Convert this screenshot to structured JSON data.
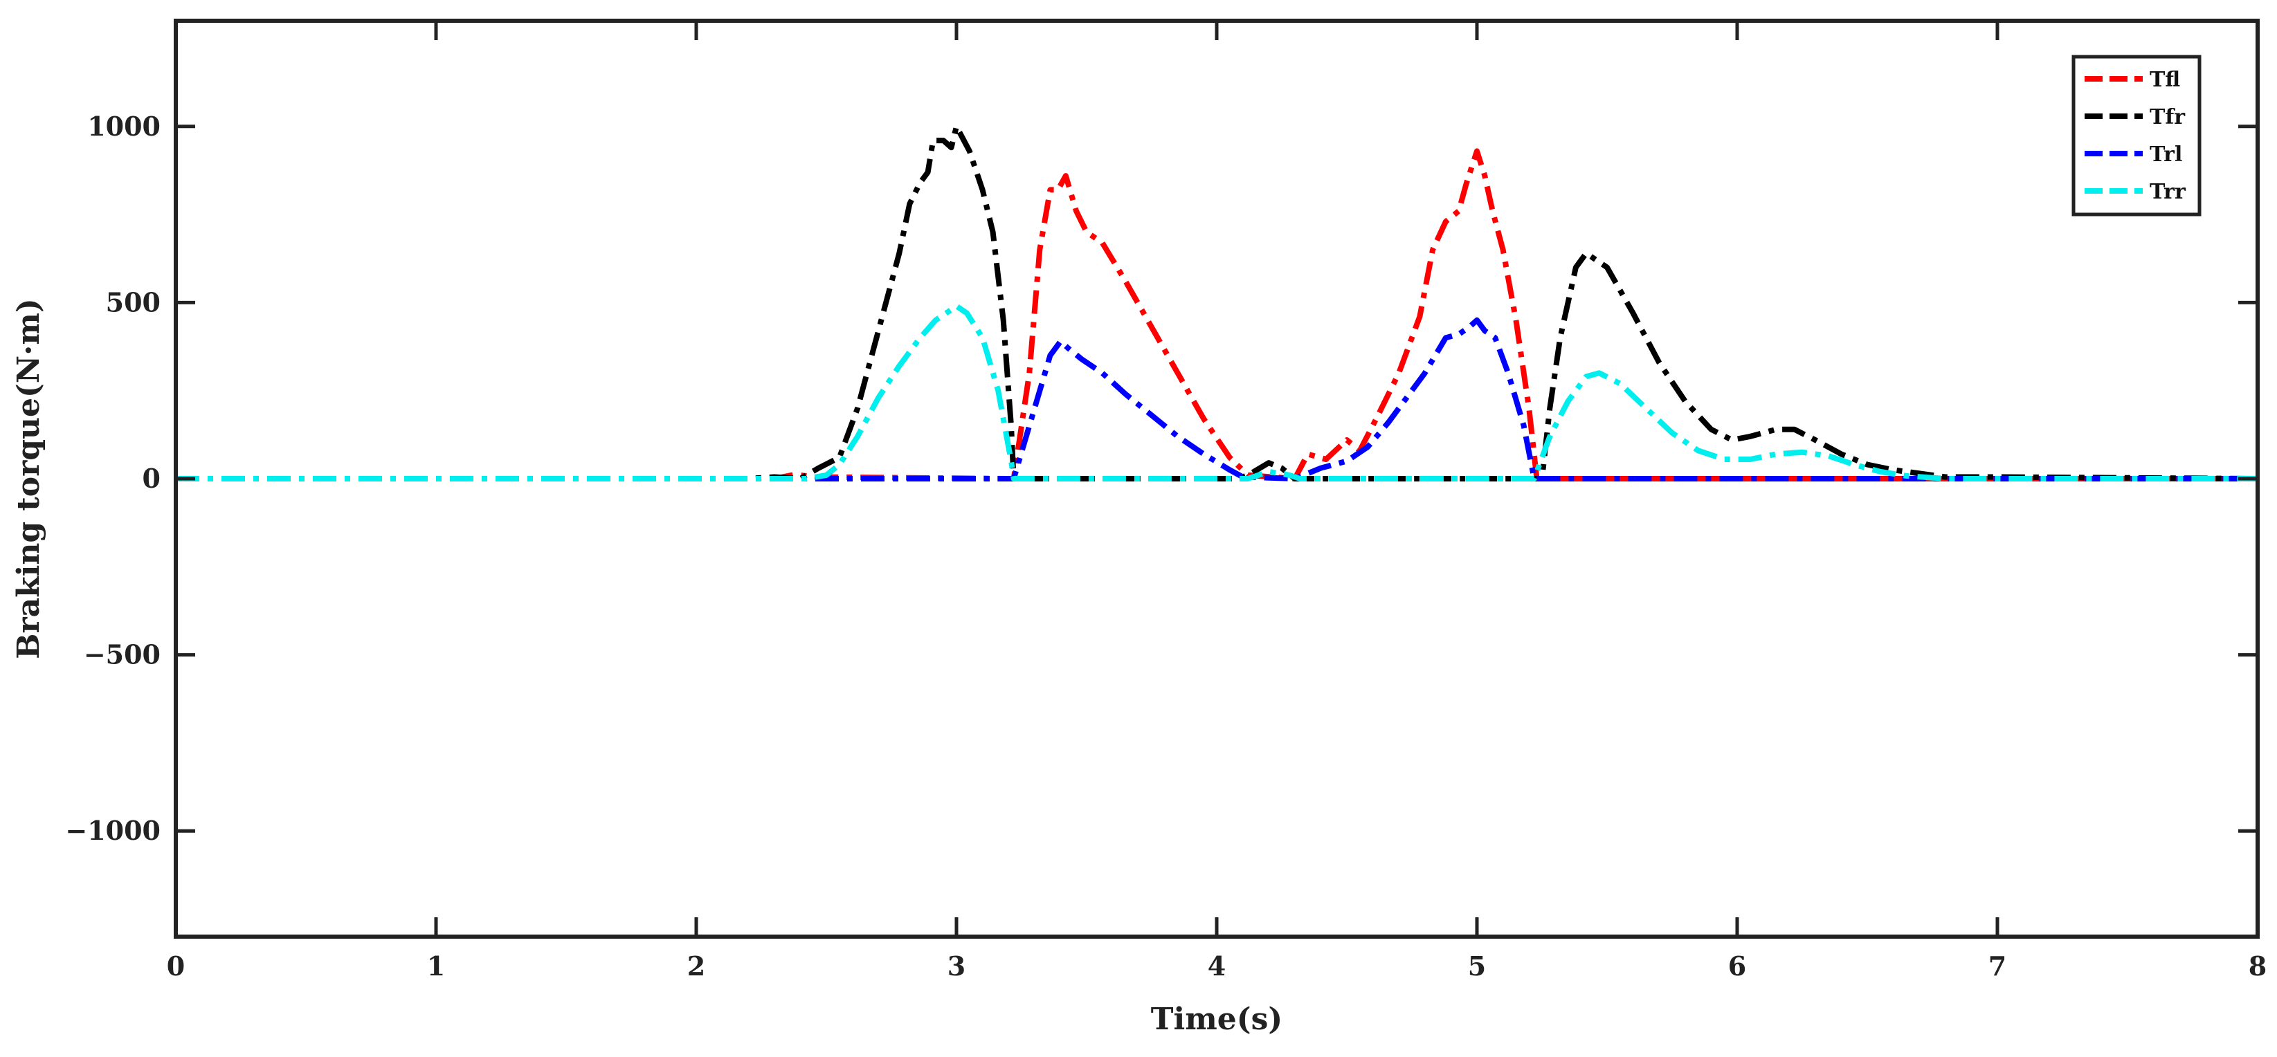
{
  "chart_data": {
    "type": "line",
    "title": "",
    "xlabel": "Time(s)",
    "ylabel": "Braking torque(N·m)",
    "xlim": [
      0,
      8
    ],
    "ylim": [
      -1300,
      1300
    ],
    "xticks": [
      0,
      1,
      2,
      3,
      4,
      5,
      6,
      7,
      8
    ],
    "yticks": [
      -1000,
      -500,
      0,
      500,
      1000
    ],
    "ytick_labels": [
      "−1000",
      "−500",
      "0",
      "500",
      "1000"
    ],
    "grid": false,
    "legend_position": "top-right",
    "series": [
      {
        "name": "Tfl",
        "color": "#ff0000",
        "points": [
          [
            0,
            0
          ],
          [
            2.3,
            0
          ],
          [
            2.38,
            12
          ],
          [
            2.45,
            5
          ],
          [
            3.2,
            0
          ],
          [
            3.22,
            0
          ],
          [
            3.28,
            300
          ],
          [
            3.32,
            650
          ],
          [
            3.36,
            820
          ],
          [
            3.39,
            820
          ],
          [
            3.42,
            860
          ],
          [
            3.46,
            760
          ],
          [
            3.5,
            700
          ],
          [
            3.56,
            670
          ],
          [
            3.65,
            560
          ],
          [
            3.75,
            430
          ],
          [
            3.85,
            300
          ],
          [
            3.95,
            170
          ],
          [
            4.05,
            60
          ],
          [
            4.12,
            10
          ],
          [
            4.3,
            0
          ],
          [
            4.35,
            70
          ],
          [
            4.42,
            55
          ],
          [
            4.5,
            110
          ],
          [
            4.55,
            80
          ],
          [
            4.62,
            180
          ],
          [
            4.7,
            300
          ],
          [
            4.78,
            460
          ],
          [
            4.83,
            650
          ],
          [
            4.88,
            730
          ],
          [
            4.93,
            760
          ],
          [
            4.96,
            840
          ],
          [
            5.0,
            930
          ],
          [
            5.03,
            860
          ],
          [
            5.06,
            760
          ],
          [
            5.1,
            650
          ],
          [
            5.15,
            450
          ],
          [
            5.2,
            200
          ],
          [
            5.23,
            0
          ],
          [
            8,
            0
          ]
        ]
      },
      {
        "name": "Tfr",
        "color": "#000000",
        "points": [
          [
            0,
            0
          ],
          [
            2.2,
            0
          ],
          [
            2.3,
            5
          ],
          [
            2.4,
            0
          ],
          [
            2.47,
            30
          ],
          [
            2.55,
            60
          ],
          [
            2.62,
            200
          ],
          [
            2.7,
            420
          ],
          [
            2.78,
            640
          ],
          [
            2.82,
            780
          ],
          [
            2.86,
            840
          ],
          [
            2.89,
            870
          ],
          [
            2.91,
            960
          ],
          [
            2.95,
            960
          ],
          [
            2.98,
            940
          ],
          [
            3.0,
            1000
          ],
          [
            3.05,
            930
          ],
          [
            3.1,
            820
          ],
          [
            3.14,
            700
          ],
          [
            3.18,
            450
          ],
          [
            3.21,
            150
          ],
          [
            3.22,
            0
          ],
          [
            4.08,
            0
          ],
          [
            4.12,
            10
          ],
          [
            4.2,
            45
          ],
          [
            4.25,
            30
          ],
          [
            4.3,
            0
          ],
          [
            5.25,
            0
          ],
          [
            5.28,
            200
          ],
          [
            5.32,
            400
          ],
          [
            5.38,
            600
          ],
          [
            5.42,
            640
          ],
          [
            5.46,
            620
          ],
          [
            5.5,
            600
          ],
          [
            5.6,
            470
          ],
          [
            5.7,
            330
          ],
          [
            5.8,
            220
          ],
          [
            5.9,
            140
          ],
          [
            5.98,
            110
          ],
          [
            6.05,
            120
          ],
          [
            6.15,
            140
          ],
          [
            6.22,
            140
          ],
          [
            6.3,
            110
          ],
          [
            6.4,
            70
          ],
          [
            6.5,
            40
          ],
          [
            6.6,
            25
          ],
          [
            6.7,
            15
          ],
          [
            6.8,
            5
          ],
          [
            7.0,
            5
          ],
          [
            8,
            0
          ]
        ]
      },
      {
        "name": "Trl",
        "color": "#0000ff",
        "points": [
          [
            0,
            0
          ],
          [
            3.22,
            0
          ],
          [
            3.3,
            200
          ],
          [
            3.36,
            350
          ],
          [
            3.4,
            390
          ],
          [
            3.43,
            370
          ],
          [
            3.48,
            340
          ],
          [
            3.56,
            300
          ],
          [
            3.65,
            240
          ],
          [
            3.75,
            180
          ],
          [
            3.85,
            120
          ],
          [
            3.95,
            70
          ],
          [
            4.05,
            25
          ],
          [
            4.1,
            5
          ],
          [
            4.3,
            0
          ],
          [
            4.4,
            30
          ],
          [
            4.5,
            50
          ],
          [
            4.58,
            90
          ],
          [
            4.66,
            160
          ],
          [
            4.74,
            240
          ],
          [
            4.8,
            300
          ],
          [
            4.84,
            350
          ],
          [
            4.88,
            400
          ],
          [
            4.93,
            410
          ],
          [
            4.97,
            430
          ],
          [
            5.0,
            450
          ],
          [
            5.03,
            420
          ],
          [
            5.07,
            400
          ],
          [
            5.12,
            300
          ],
          [
            5.18,
            150
          ],
          [
            5.22,
            0
          ],
          [
            8,
            0
          ]
        ]
      },
      {
        "name": "Trr",
        "color": "#00eeee",
        "points": [
          [
            0,
            0
          ],
          [
            2.42,
            0
          ],
          [
            2.5,
            10
          ],
          [
            2.55,
            40
          ],
          [
            2.62,
            120
          ],
          [
            2.7,
            230
          ],
          [
            2.78,
            320
          ],
          [
            2.86,
            400
          ],
          [
            2.92,
            450
          ],
          [
            2.96,
            470
          ],
          [
            3.0,
            490
          ],
          [
            3.04,
            470
          ],
          [
            3.1,
            400
          ],
          [
            3.16,
            250
          ],
          [
            3.21,
            50
          ],
          [
            3.22,
            0
          ],
          [
            4.12,
            0
          ],
          [
            4.2,
            20
          ],
          [
            4.28,
            10
          ],
          [
            4.32,
            0
          ],
          [
            5.22,
            0
          ],
          [
            5.28,
            120
          ],
          [
            5.35,
            220
          ],
          [
            5.42,
            290
          ],
          [
            5.47,
            300
          ],
          [
            5.55,
            270
          ],
          [
            5.65,
            200
          ],
          [
            5.75,
            130
          ],
          [
            5.85,
            80
          ],
          [
            5.95,
            55
          ],
          [
            6.05,
            55
          ],
          [
            6.15,
            70
          ],
          [
            6.25,
            75
          ],
          [
            6.35,
            65
          ],
          [
            6.45,
            40
          ],
          [
            6.55,
            20
          ],
          [
            6.65,
            8
          ],
          [
            6.8,
            0
          ],
          [
            8,
            0
          ]
        ]
      }
    ]
  }
}
